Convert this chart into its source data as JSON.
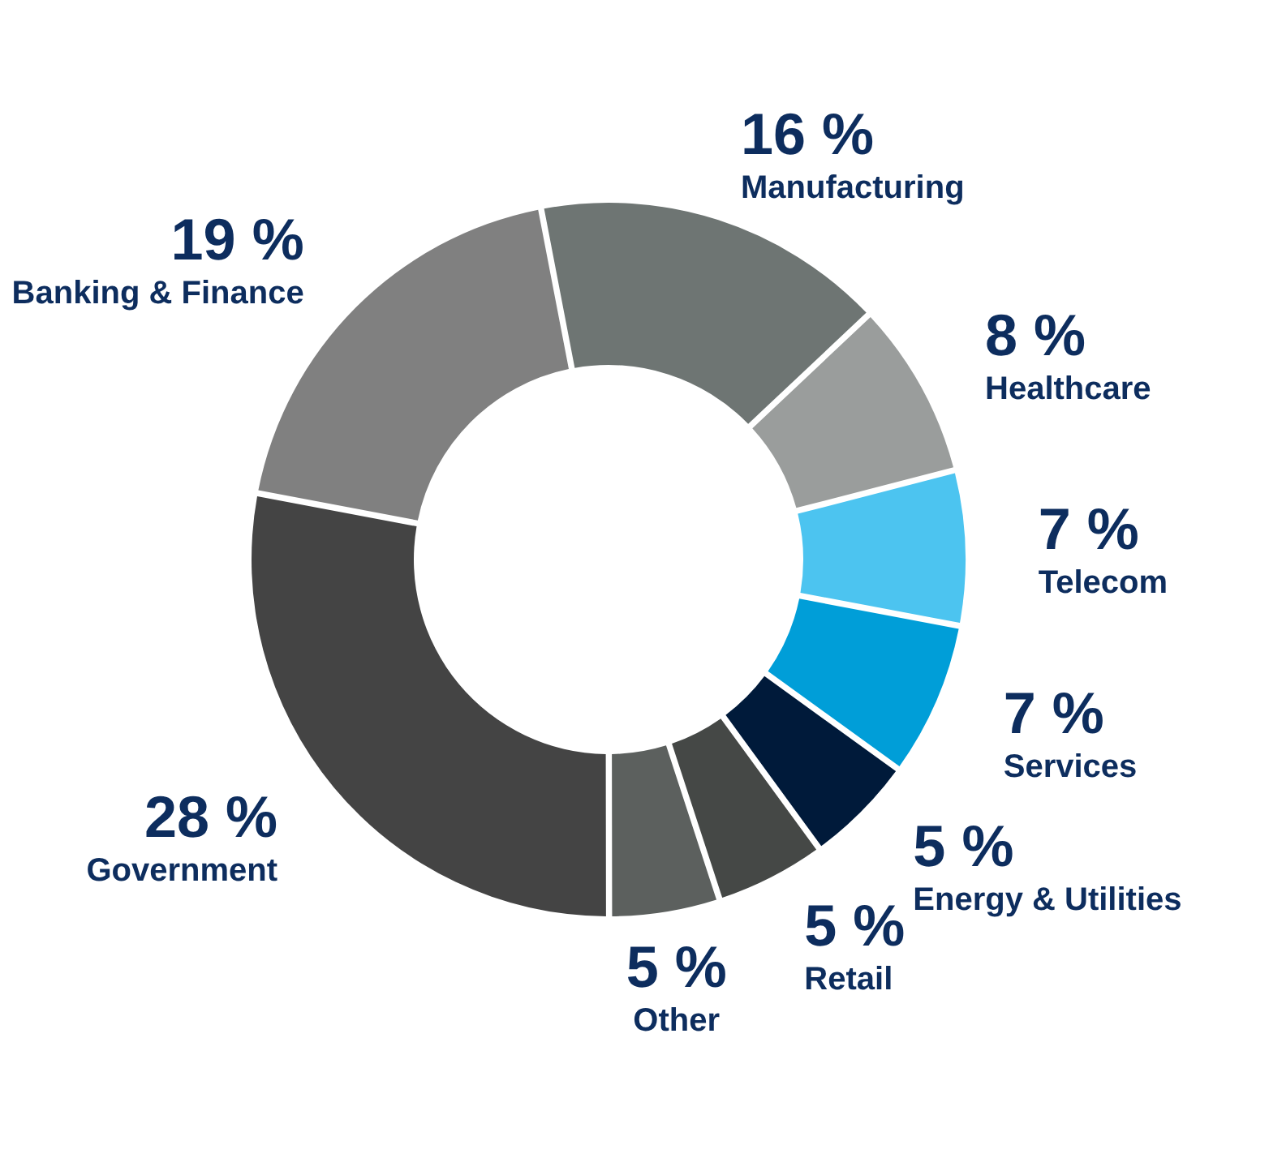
{
  "chart_data": {
    "type": "donut",
    "categories": [
      "Manufacturing",
      "Healthcare",
      "Telecom",
      "Services",
      "Energy & Utilities",
      "Retail",
      "Other",
      "Government",
      "Banking & Finance"
    ],
    "values": [
      16,
      8,
      7,
      7,
      5,
      5,
      5,
      28,
      19
    ],
    "value_labels": [
      "16 %",
      "8 %",
      "7 %",
      "7 %",
      "5 %",
      "5 %",
      "5 %",
      "28 %",
      "19 %"
    ],
    "colors": [
      "#6e7573",
      "#9a9d9c",
      "#4cc4f0",
      "#009ed8",
      "#001a3a",
      "#454846",
      "#5c605e",
      "#444444",
      "#808080"
    ],
    "legend": false
  }
}
